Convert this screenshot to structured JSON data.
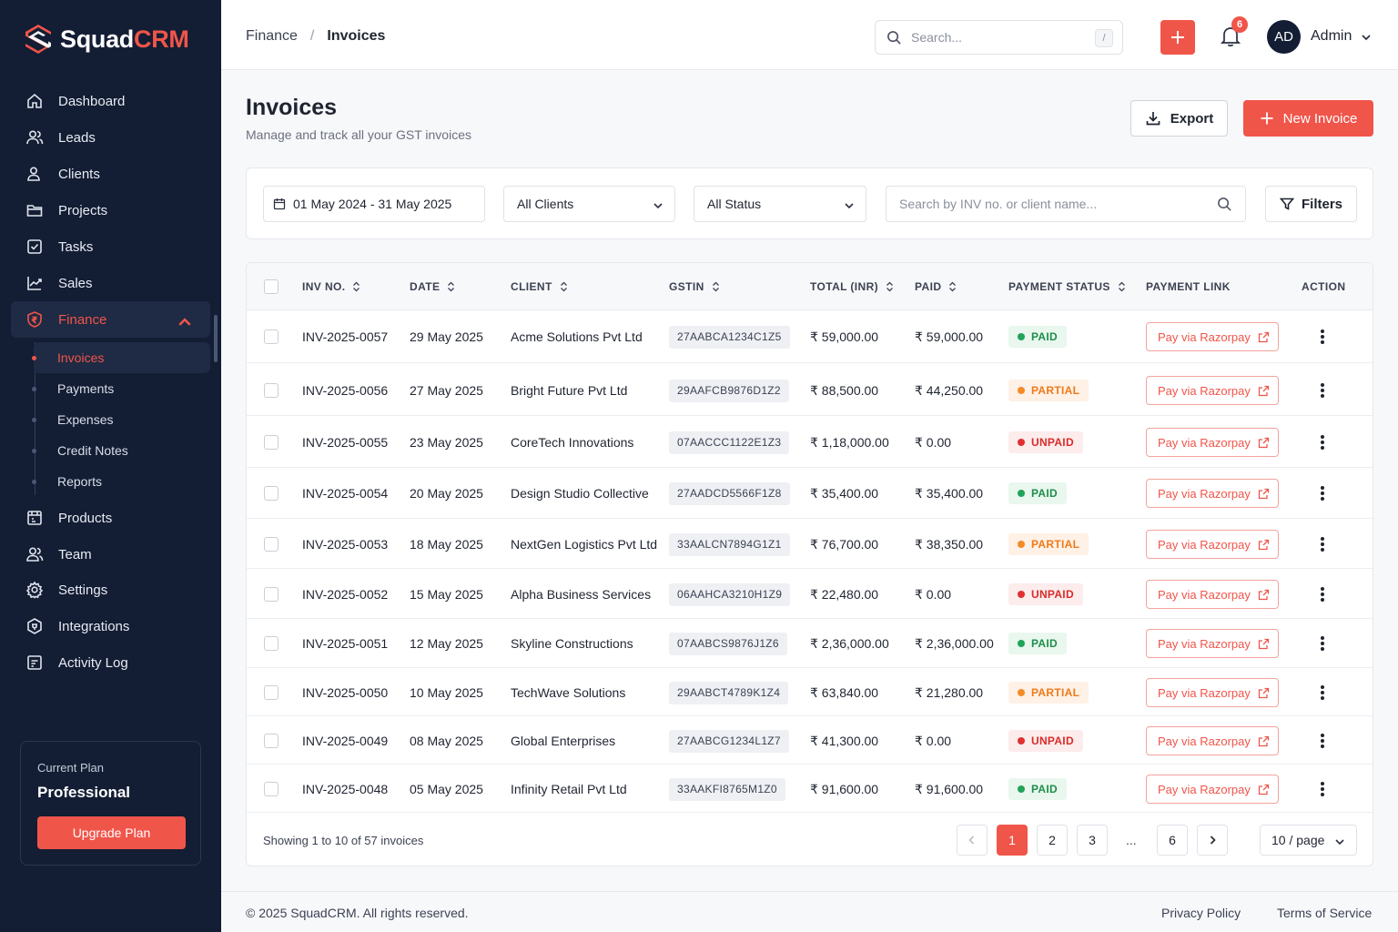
{
  "brand": {
    "name_part1": "Squad",
    "name_part2": "CRM",
    "accent": "#f0554a",
    "sidebar_bg": "#131d33"
  },
  "sidebar": {
    "items": [
      {
        "label": "Dashboard",
        "icon": "home-icon"
      },
      {
        "label": "Leads",
        "icon": "users-icon"
      },
      {
        "label": "Clients",
        "icon": "user-group-icon"
      },
      {
        "label": "Projects",
        "icon": "folder-icon"
      },
      {
        "label": "Tasks",
        "icon": "check-square-icon"
      },
      {
        "label": "Sales",
        "icon": "chart-line-icon"
      },
      {
        "label": "Finance",
        "icon": "shield-rupee-icon",
        "expanded": true
      },
      {
        "label": "Products",
        "icon": "box-icon"
      },
      {
        "label": "Team",
        "icon": "team-icon"
      },
      {
        "label": "Settings",
        "icon": "gear-icon"
      },
      {
        "label": "Integrations",
        "icon": "plug-icon"
      },
      {
        "label": "Activity Log",
        "icon": "log-icon"
      }
    ],
    "finance_sub": [
      {
        "label": "Invoices",
        "active": true
      },
      {
        "label": "Payments"
      },
      {
        "label": "Expenses"
      },
      {
        "label": "Credit Notes"
      },
      {
        "label": "Reports"
      }
    ],
    "plan": {
      "label": "Current Plan",
      "name": "Professional",
      "button": "Upgrade Plan"
    }
  },
  "topbar": {
    "breadcrumb": [
      "Finance",
      "Invoices"
    ],
    "breadcrumb_sep": "/",
    "search_placeholder": "Search...",
    "search_shortcut": "/",
    "notifications_count": "6",
    "avatar_initials": "AD",
    "user_name": "Admin"
  },
  "page": {
    "title": "Invoices",
    "subtitle": "Manage and track all your GST invoices",
    "export_label": "Export",
    "new_label": "New Invoice"
  },
  "filters": {
    "date_range": "01 May 2024 - 31 May 2025",
    "clients": "All Clients",
    "status": "All Status",
    "search_placeholder": "Search by INV no. or client name...",
    "filters_label": "Filters"
  },
  "table": {
    "columns": [
      "INV NO.",
      "DATE",
      "CLIENT",
      "GSTIN",
      "TOTAL (INR)",
      "PAID",
      "PAYMENT STATUS",
      "PAYMENT LINK",
      "ACTION"
    ],
    "paylink_label": "Pay via Razorpay",
    "rows": [
      {
        "inv": "INV-2025-0057",
        "date": "29 May 2025",
        "client": "Acme Solutions Pvt Ltd",
        "gstin": "27AABCA1234C1Z5",
        "total": "₹ 59,000.00",
        "paid": "₹ 59,000.00",
        "status": "PAID"
      },
      {
        "inv": "INV-2025-0056",
        "date": "27 May 2025",
        "client": "Bright Future Pvt Ltd",
        "gstin": "29AAFCB9876D1Z2",
        "total": "₹ 88,500.00",
        "paid": "₹ 44,250.00",
        "status": "PARTIAL"
      },
      {
        "inv": "INV-2025-0055",
        "date": "23 May 2025",
        "client": "CoreTech Innovations",
        "gstin": "07AACCC1122E1Z3",
        "total": "₹ 1,18,000.00",
        "paid": "₹ 0.00",
        "status": "UNPAID"
      },
      {
        "inv": "INV-2025-0054",
        "date": "20 May 2025",
        "client": "Design Studio Collective",
        "gstin": "27AADCD5566F1Z8",
        "total": "₹ 35,400.00",
        "paid": "₹ 35,400.00",
        "status": "PAID"
      },
      {
        "inv": "INV-2025-0053",
        "date": "18 May 2025",
        "client": "NextGen Logistics Pvt Ltd",
        "gstin": "33AALCN7894G1Z1",
        "total": "₹ 76,700.00",
        "paid": "₹ 38,350.00",
        "status": "PARTIAL"
      },
      {
        "inv": "INV-2025-0052",
        "date": "15 May 2025",
        "client": "Alpha Business Services",
        "gstin": "06AAHCA3210H1Z9",
        "total": "₹ 22,480.00",
        "paid": "₹ 0.00",
        "status": "UNPAID"
      },
      {
        "inv": "INV-2025-0051",
        "date": "12 May 2025",
        "client": "Skyline Constructions",
        "gstin": "07AABCS9876J1Z6",
        "total": "₹ 2,36,000.00",
        "paid": "₹ 2,36,000.00",
        "status": "PAID"
      },
      {
        "inv": "INV-2025-0050",
        "date": "10 May 2025",
        "client": "TechWave Solutions",
        "gstin": "29AABCT4789K1Z4",
        "total": "₹ 63,840.00",
        "paid": "₹ 21,280.00",
        "status": "PARTIAL"
      },
      {
        "inv": "INV-2025-0049",
        "date": "08 May 2025",
        "client": "Global Enterprises",
        "gstin": "27AABCG1234L1Z7",
        "total": "₹ 41,300.00",
        "paid": "₹ 0.00",
        "status": "UNPAID"
      },
      {
        "inv": "INV-2025-0048",
        "date": "05 May 2025",
        "client": "Infinity Retail Pvt Ltd",
        "gstin": "33AAKFI8765M1Z0",
        "total": "₹ 91,600.00",
        "paid": "₹ 91,600.00",
        "status": "PAID"
      }
    ],
    "status_colors": {
      "PAID": "#22a35a",
      "PARTIAL": "#f28b28",
      "UNPAID": "#e0302f"
    }
  },
  "pagination": {
    "showing": "Showing 1 to 10 of 57 invoices",
    "pages": [
      "1",
      "2",
      "3",
      "6"
    ],
    "ellipsis": "...",
    "current": "1",
    "per_page": "10 / page"
  },
  "footer": {
    "copyright": "© 2025 SquadCRM. All rights reserved.",
    "privacy": "Privacy Policy",
    "terms": "Terms of Service"
  }
}
